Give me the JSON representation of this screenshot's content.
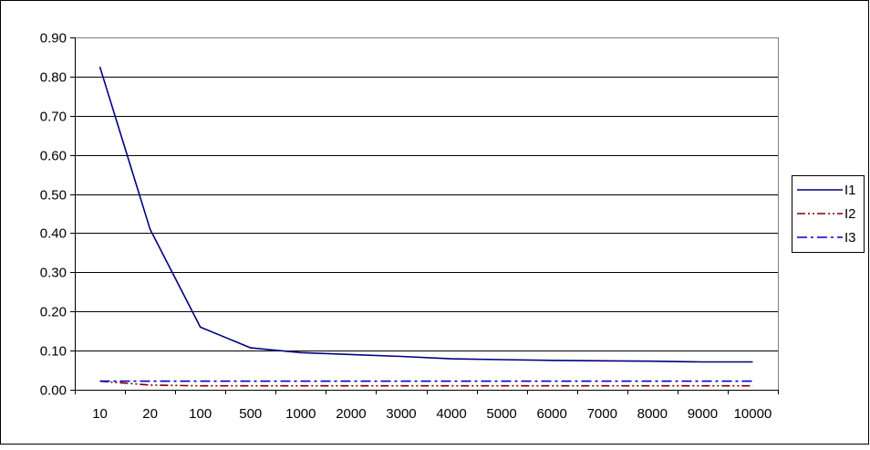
{
  "chart_data": {
    "type": "line",
    "title": "",
    "xlabel": "",
    "ylabel": "",
    "categories": [
      "10",
      "20",
      "100",
      "500",
      "1000",
      "2000",
      "3000",
      "4000",
      "5000",
      "6000",
      "7000",
      "8000",
      "9000",
      "10000"
    ],
    "ylim": [
      0,
      0.9
    ],
    "yticks": [
      "0.00",
      "0.10",
      "0.20",
      "0.30",
      "0.40",
      "0.50",
      "0.60",
      "0.70",
      "0.80",
      "0.90"
    ],
    "grid": "horizontal",
    "legend_position": "right",
    "series": [
      {
        "name": "I1",
        "color": "#000080",
        "dash": "solid",
        "values": [
          0.825,
          0.41,
          0.16,
          0.107,
          0.095,
          0.09,
          0.085,
          0.079,
          0.077,
          0.075,
          0.074,
          0.073,
          0.071,
          0.071
        ]
      },
      {
        "name": "I2",
        "color": "#7f0000",
        "dash": "dash-dot-dot",
        "values": [
          0.022,
          0.012,
          0.01,
          0.01,
          0.01,
          0.01,
          0.01,
          0.01,
          0.01,
          0.01,
          0.01,
          0.01,
          0.01,
          0.01
        ]
      },
      {
        "name": "I3",
        "color": "#0000cc",
        "dash": "dash-dot",
        "values": [
          0.022,
          0.022,
          0.022,
          0.022,
          0.022,
          0.022,
          0.022,
          0.022,
          0.022,
          0.022,
          0.022,
          0.022,
          0.022,
          0.022
        ]
      }
    ]
  }
}
